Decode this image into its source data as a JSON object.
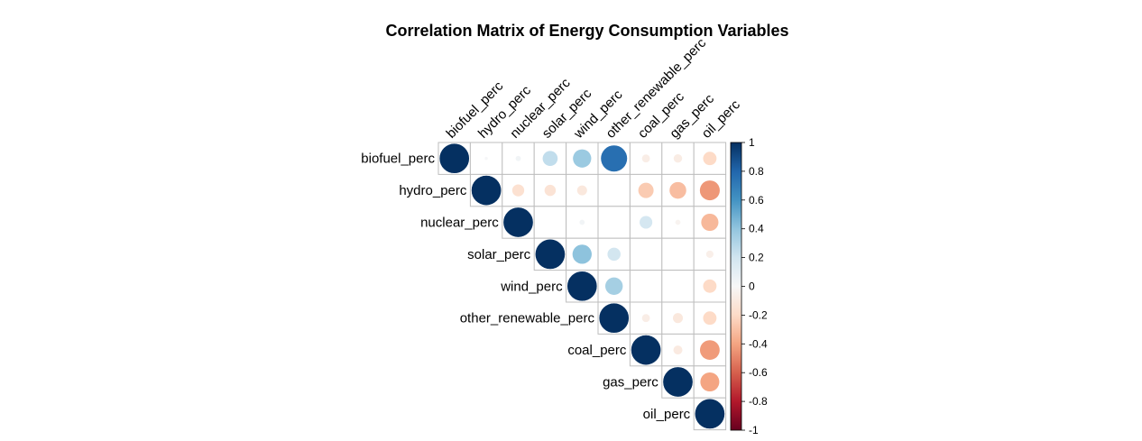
{
  "chart_data": {
    "type": "heatmap",
    "style": "corrplot-circle-upper",
    "title": "Correlation Matrix of Energy Consumption Variables",
    "variables": [
      "biofuel_perc",
      "hydro_perc",
      "nuclear_perc",
      "solar_perc",
      "wind_perc",
      "other_renewable_perc",
      "coal_perc",
      "gas_perc",
      "oil_perc"
    ],
    "matrix": [
      [
        1.0,
        0.01,
        0.03,
        0.25,
        0.37,
        0.76,
        -0.07,
        -0.08,
        -0.2
      ],
      [
        null,
        1.0,
        -0.16,
        -0.14,
        -0.11,
        0.0,
        -0.26,
        -0.31,
        -0.44
      ],
      [
        null,
        null,
        1.0,
        0.0,
        0.03,
        0.0,
        0.18,
        -0.03,
        -0.33
      ],
      [
        null,
        null,
        null,
        1.0,
        0.41,
        0.19,
        null,
        null,
        -0.06
      ],
      [
        null,
        null,
        null,
        null,
        1.0,
        0.34,
        null,
        null,
        -0.2
      ],
      [
        null,
        null,
        null,
        null,
        null,
        1.0,
        -0.07,
        -0.11,
        -0.2
      ],
      [
        null,
        null,
        null,
        null,
        null,
        null,
        1.0,
        -0.09,
        -0.43
      ],
      [
        null,
        null,
        null,
        null,
        null,
        null,
        null,
        1.0,
        -0.4
      ],
      [
        null,
        null,
        null,
        null,
        null,
        null,
        null,
        null,
        1.0
      ]
    ],
    "colorbar": {
      "range": [
        -1,
        1
      ],
      "ticks": [
        "1",
        "0.8",
        "0.6",
        "0.4",
        "0.2",
        "0",
        "-0.2",
        "-0.4",
        "-0.6",
        "-0.8",
        "-1"
      ],
      "placement": "right"
    },
    "colors": {
      "negative_end": "#67001F",
      "zero": "#F7F7F7",
      "positive_end": "#053061",
      "grid": "#BEBEBE"
    }
  }
}
